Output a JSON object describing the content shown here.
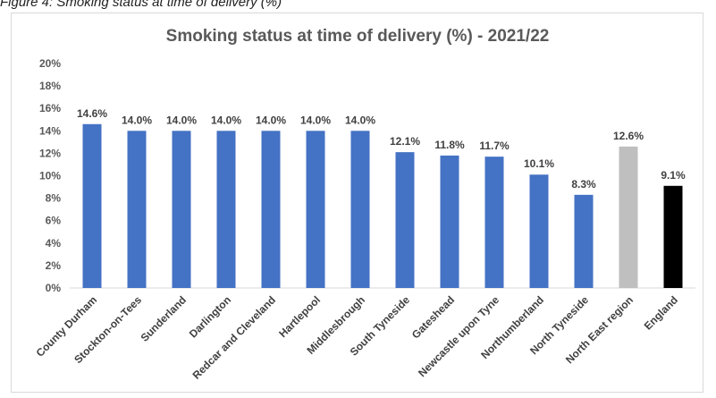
{
  "caption": "Figure 4: Smoking status at time of delivery (%)",
  "chart_data": {
    "type": "bar",
    "title": "Smoking status at time of delivery (%) - 2021/22",
    "xlabel": "",
    "ylabel": "",
    "ylim": [
      0,
      20
    ],
    "y_ticks": [
      "0%",
      "2%",
      "4%",
      "6%",
      "8%",
      "10%",
      "12%",
      "14%",
      "16%",
      "18%",
      "20%"
    ],
    "grid": false,
    "legend": "none",
    "categories": [
      "County Durham",
      "Stockton-on-Tees",
      "Sunderland",
      "Darlington",
      "Redcar and Cleveland",
      "Hartlepool",
      "Middlesbrough",
      "South Tyneside",
      "Gateshead",
      "Newcastle upon Tyne",
      "Northumberland",
      "North Tyneside",
      "North East region",
      "England"
    ],
    "values": [
      14.6,
      14.0,
      14.0,
      14.0,
      14.0,
      14.0,
      14.0,
      12.1,
      11.8,
      11.7,
      10.1,
      8.3,
      12.6,
      9.1
    ],
    "data_labels": [
      "14.6%",
      "14.0%",
      "14.0%",
      "14.0%",
      "14.0%",
      "14.0%",
      "14.0%",
      "12.1%",
      "11.8%",
      "11.7%",
      "10.1%",
      "8.3%",
      "12.6%",
      "9.1%"
    ],
    "colors": {
      "default": "#4472c4",
      "North East region": "#bfbfbf",
      "England": "#000000",
      "axis": "#d9d9d9",
      "text": "#595959"
    }
  }
}
